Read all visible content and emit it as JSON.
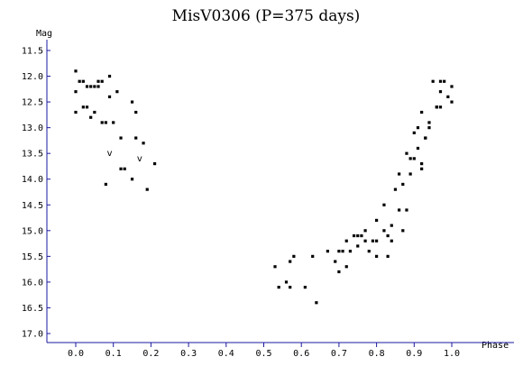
{
  "chart_data": {
    "type": "scatter",
    "title": "MisV0306 (P=375 days)",
    "xlabel": "Phase",
    "ylabel": "Mag",
    "xlim": [
      -0.05,
      1.05
    ],
    "ylim": [
      11.25,
      17.2
    ],
    "y_inverted": true,
    "x_ticks": [
      "0.0",
      "0.1",
      "0.2",
      "0.3",
      "0.4",
      "0.5",
      "0.6",
      "0.7",
      "0.8",
      "0.9",
      "1.0"
    ],
    "y_ticks": [
      "11.5",
      "12.0",
      "12.5",
      "13.0",
      "13.5",
      "14.0",
      "14.5",
      "15.0",
      "15.5",
      "16.0",
      "16.5",
      "17.0"
    ],
    "grid": false,
    "points": [
      [
        0.0,
        11.9
      ],
      [
        0.0,
        12.3
      ],
      [
        0.0,
        12.7
      ],
      [
        0.01,
        12.1
      ],
      [
        0.02,
        12.6
      ],
      [
        0.02,
        12.1
      ],
      [
        0.03,
        12.2
      ],
      [
        0.03,
        12.6
      ],
      [
        0.04,
        12.2
      ],
      [
        0.04,
        12.8
      ],
      [
        0.05,
        12.2
      ],
      [
        0.05,
        12.7
      ],
      [
        0.06,
        12.1
      ],
      [
        0.06,
        12.2
      ],
      [
        0.07,
        12.1
      ],
      [
        0.07,
        12.9
      ],
      [
        0.08,
        12.9
      ],
      [
        0.08,
        14.1
      ],
      [
        0.09,
        12.0
      ],
      [
        0.09,
        12.4
      ],
      [
        0.1,
        12.9
      ],
      [
        0.11,
        12.3
      ],
      [
        0.12,
        13.2
      ],
      [
        0.12,
        13.8
      ],
      [
        0.13,
        13.8
      ],
      [
        0.15,
        12.5
      ],
      [
        0.15,
        14.0
      ],
      [
        0.16,
        12.7
      ],
      [
        0.16,
        13.2
      ],
      [
        0.18,
        13.3
      ],
      [
        0.19,
        14.2
      ],
      [
        0.21,
        13.7
      ],
      [
        0.53,
        15.7
      ],
      [
        0.54,
        16.1
      ],
      [
        0.56,
        16.0
      ],
      [
        0.57,
        15.6
      ],
      [
        0.57,
        16.1
      ],
      [
        0.58,
        15.5
      ],
      [
        0.61,
        16.1
      ],
      [
        0.63,
        15.5
      ],
      [
        0.64,
        16.4
      ],
      [
        0.67,
        15.4
      ],
      [
        0.69,
        15.6
      ],
      [
        0.7,
        15.4
      ],
      [
        0.7,
        15.8
      ],
      [
        0.71,
        15.4
      ],
      [
        0.72,
        15.2
      ],
      [
        0.72,
        15.7
      ],
      [
        0.73,
        15.4
      ],
      [
        0.74,
        15.1
      ],
      [
        0.75,
        15.3
      ],
      [
        0.75,
        15.1
      ],
      [
        0.76,
        15.1
      ],
      [
        0.77,
        15.0
      ],
      [
        0.77,
        15.2
      ],
      [
        0.78,
        15.4
      ],
      [
        0.79,
        15.2
      ],
      [
        0.8,
        15.2
      ],
      [
        0.8,
        15.5
      ],
      [
        0.8,
        14.8
      ],
      [
        0.82,
        15.0
      ],
      [
        0.82,
        14.5
      ],
      [
        0.83,
        15.1
      ],
      [
        0.83,
        15.5
      ],
      [
        0.84,
        14.9
      ],
      [
        0.84,
        15.2
      ],
      [
        0.85,
        14.2
      ],
      [
        0.86,
        14.6
      ],
      [
        0.86,
        13.9
      ],
      [
        0.87,
        15.0
      ],
      [
        0.87,
        14.1
      ],
      [
        0.88,
        14.6
      ],
      [
        0.88,
        13.5
      ],
      [
        0.89,
        13.9
      ],
      [
        0.89,
        13.6
      ],
      [
        0.9,
        13.1
      ],
      [
        0.9,
        13.6
      ],
      [
        0.91,
        13.0
      ],
      [
        0.91,
        13.4
      ],
      [
        0.92,
        13.7
      ],
      [
        0.92,
        13.8
      ],
      [
        0.92,
        12.7
      ],
      [
        0.93,
        13.2
      ],
      [
        0.93,
        13.2
      ],
      [
        0.94,
        13.0
      ],
      [
        0.94,
        12.9
      ],
      [
        0.95,
        12.1
      ],
      [
        0.96,
        12.6
      ],
      [
        0.96,
        12.6
      ],
      [
        0.97,
        12.1
      ],
      [
        0.97,
        12.3
      ],
      [
        0.97,
        12.6
      ],
      [
        0.98,
        12.1
      ],
      [
        0.99,
        12.4
      ],
      [
        1.0,
        12.2
      ],
      [
        1.0,
        12.5
      ]
    ],
    "upper_limits": [
      [
        0.09,
        13.5
      ],
      [
        0.17,
        13.6
      ]
    ],
    "upper_limit_symbol": "v"
  }
}
